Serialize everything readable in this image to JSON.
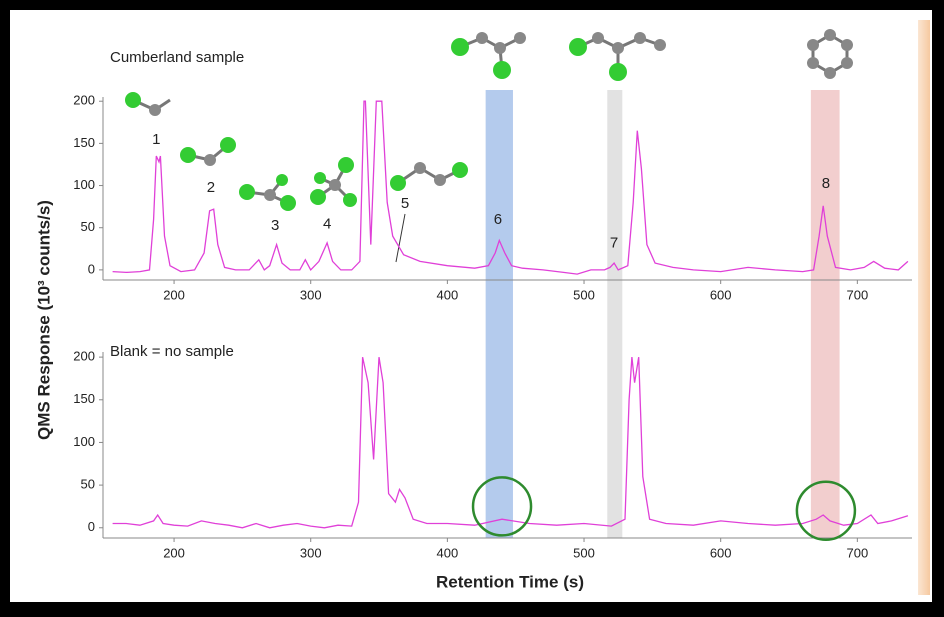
{
  "chart_data": [
    {
      "type": "line",
      "title": "Cumberland sample",
      "ylabel": "QMS Response (10³ counts/s)",
      "x": [
        155,
        165,
        175,
        182,
        185,
        187,
        189,
        190,
        193,
        197,
        205,
        215,
        222,
        226,
        229,
        232,
        237,
        245,
        255,
        262,
        266,
        270,
        275,
        279,
        285,
        292,
        296,
        300,
        306,
        312,
        316,
        322,
        330,
        336,
        339,
        340,
        344,
        348,
        352,
        356,
        360,
        368,
        380,
        400,
        420,
        430,
        435,
        438,
        442,
        447,
        455,
        470,
        485,
        495,
        505,
        515,
        519,
        522,
        525,
        532,
        536,
        539,
        542,
        546,
        552,
        565,
        580,
        600,
        620,
        640,
        660,
        668,
        672,
        675,
        678,
        684,
        695,
        705,
        712,
        720,
        730,
        737
      ],
      "series": [
        {
          "color": "#e040d8",
          "values": [
            -2,
            -3,
            -2,
            0,
            60,
            135,
            128,
            135,
            40,
            5,
            -2,
            0,
            20,
            70,
            72,
            30,
            3,
            0,
            0,
            12,
            0,
            5,
            30,
            8,
            0,
            0,
            12,
            0,
            10,
            32,
            10,
            0,
            0,
            10,
            200,
            200,
            30,
            200,
            200,
            80,
            40,
            18,
            10,
            5,
            2,
            5,
            20,
            35,
            20,
            5,
            2,
            0,
            -3,
            -5,
            0,
            0,
            3,
            8,
            0,
            5,
            80,
            165,
            120,
            30,
            8,
            3,
            0,
            -2,
            3,
            0,
            -2,
            0,
            40,
            76,
            40,
            3,
            0,
            3,
            10,
            2,
            0,
            10
          ]
        }
      ],
      "xlim": [
        148,
        740
      ],
      "ylim": [
        -12,
        205
      ],
      "xticks": [
        200,
        300,
        400,
        500,
        600,
        700
      ],
      "yticks": [
        0,
        50,
        100,
        150,
        200
      ],
      "annotations": [
        {
          "text": "1",
          "x": 187,
          "y": 154
        },
        {
          "text": "2",
          "x": 227,
          "y": 97
        },
        {
          "text": "3",
          "x": 274,
          "y": 52
        },
        {
          "text": "4",
          "x": 312,
          "y": 54
        },
        {
          "text": "5",
          "x": 369,
          "y": 78
        },
        {
          "text": "6",
          "x": 437,
          "y": 59
        },
        {
          "text": "7",
          "x": 522,
          "y": 31
        },
        {
          "text": "8",
          "x": 677,
          "y": 102
        }
      ],
      "bands": [
        {
          "x": [
            428,
            448
          ],
          "color": "#a7c2ea"
        },
        {
          "x": [
            517,
            528
          ],
          "color": "#dddddd"
        },
        {
          "x": [
            666,
            687
          ],
          "color": "#f0c6c6"
        }
      ]
    },
    {
      "type": "line",
      "title": "Blank = no sample",
      "xlabel": "Retention Time (s)",
      "x": [
        155,
        165,
        175,
        185,
        188,
        192,
        200,
        210,
        220,
        230,
        240,
        250,
        260,
        270,
        280,
        290,
        300,
        310,
        320,
        330,
        335,
        338,
        342,
        346,
        350,
        353,
        357,
        362,
        365,
        369,
        375,
        385,
        400,
        420,
        440,
        460,
        480,
        500,
        520,
        530,
        533,
        535,
        537,
        540,
        543,
        548,
        560,
        580,
        600,
        620,
        640,
        660,
        670,
        675,
        680,
        690,
        700,
        710,
        715,
        725,
        737
      ],
      "series": [
        {
          "color": "#e040d8",
          "values": [
            5,
            5,
            3,
            8,
            15,
            5,
            3,
            2,
            8,
            5,
            3,
            0,
            5,
            0,
            3,
            5,
            2,
            0,
            3,
            2,
            30,
            200,
            170,
            80,
            200,
            170,
            40,
            30,
            45,
            35,
            10,
            5,
            5,
            3,
            10,
            5,
            3,
            5,
            2,
            10,
            150,
            200,
            170,
            200,
            60,
            10,
            5,
            3,
            8,
            5,
            3,
            5,
            10,
            15,
            8,
            3,
            5,
            15,
            5,
            8,
            14
          ]
        }
      ],
      "xlim": [
        148,
        740
      ],
      "ylim": [
        -12,
        206
      ],
      "xticks": [
        200,
        300,
        400,
        500,
        600,
        700
      ],
      "yticks": [
        0,
        50,
        100,
        150,
        200
      ],
      "circles": [
        {
          "x": 440,
          "y": 25
        },
        {
          "x": 677,
          "y": 20
        }
      ]
    }
  ]
}
